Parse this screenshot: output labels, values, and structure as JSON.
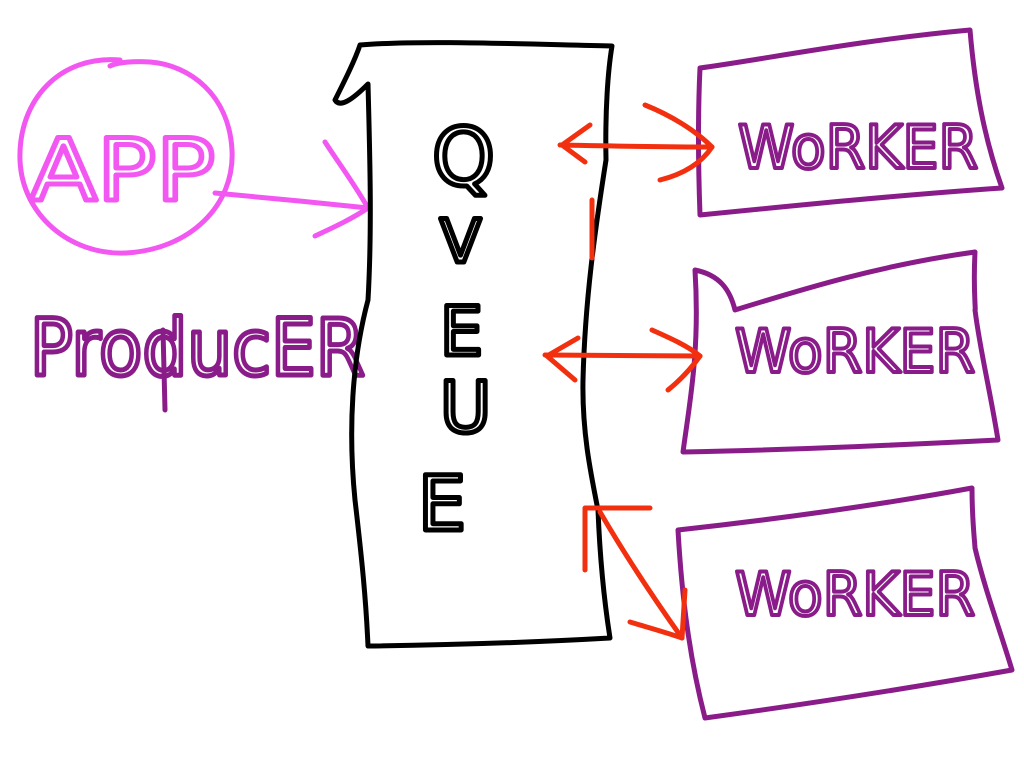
{
  "app_node": {
    "label": "APP",
    "role_label": "ProducER"
  },
  "queue_node": {
    "letters": [
      "Q",
      "V",
      "E",
      "U",
      "E"
    ]
  },
  "workers": [
    {
      "label": "WoRKER"
    },
    {
      "label": "WoRKER"
    },
    {
      "label": "WoRKER"
    }
  ],
  "colors": {
    "app": "#f257f2",
    "producer": "#8a1c8a",
    "queue": "#000000",
    "worker": "#8a1c8a",
    "arrow_queue_worker": "#f2300f"
  }
}
